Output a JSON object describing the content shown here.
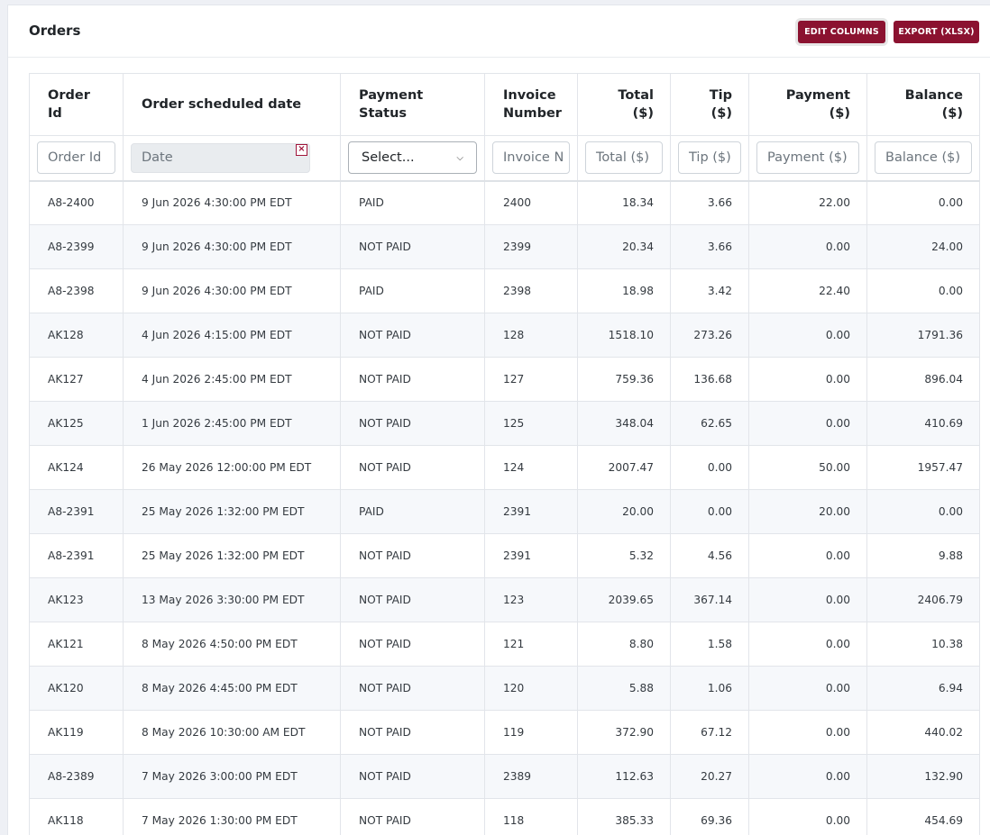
{
  "header": {
    "title": "Orders",
    "edit_columns_label": "EDIT COLUMNS",
    "export_label": "EXPORT (XLSX)"
  },
  "columns": [
    "Order Id",
    "Order scheduled date",
    "Payment Status",
    "Invoice Number",
    "Total ($)",
    "Tip ($)",
    "Payment ($)",
    "Balance ($)"
  ],
  "filters": {
    "order_id_placeholder": "Order Id",
    "date_placeholder": "Date",
    "date_clear_icon": "×",
    "payment_status_selected": "Select...",
    "invoice_placeholder": "Invoice N",
    "total_placeholder": "Total ($)",
    "tip_placeholder": "Tip ($)",
    "payment_placeholder": "Payment ($)",
    "balance_placeholder": "Balance ($)"
  },
  "rows": [
    [
      "A8-2400",
      "9 Jun 2026 4:30:00 PM EDT",
      "PAID",
      "2400",
      "18.34",
      "3.66",
      "22.00",
      "0.00"
    ],
    [
      "A8-2399",
      "9 Jun 2026 4:30:00 PM EDT",
      "NOT PAID",
      "2399",
      "20.34",
      "3.66",
      "0.00",
      "24.00"
    ],
    [
      "A8-2398",
      "9 Jun 2026 4:30:00 PM EDT",
      "PAID",
      "2398",
      "18.98",
      "3.42",
      "22.40",
      "0.00"
    ],
    [
      "AK128",
      "4 Jun 2026 4:15:00 PM EDT",
      "NOT PAID",
      "128",
      "1518.10",
      "273.26",
      "0.00",
      "1791.36"
    ],
    [
      "AK127",
      "4 Jun 2026 2:45:00 PM EDT",
      "NOT PAID",
      "127",
      "759.36",
      "136.68",
      "0.00",
      "896.04"
    ],
    [
      "AK125",
      "1 Jun 2026 2:45:00 PM EDT",
      "NOT PAID",
      "125",
      "348.04",
      "62.65",
      "0.00",
      "410.69"
    ],
    [
      "AK124",
      "26 May 2026 12:00:00 PM EDT",
      "NOT PAID",
      "124",
      "2007.47",
      "0.00",
      "50.00",
      "1957.47"
    ],
    [
      "A8-2391",
      "25 May 2026 1:32:00 PM EDT",
      "PAID",
      "2391",
      "20.00",
      "0.00",
      "20.00",
      "0.00"
    ],
    [
      "A8-2391",
      "25 May 2026 1:32:00 PM EDT",
      "NOT PAID",
      "2391",
      "5.32",
      "4.56",
      "0.00",
      "9.88"
    ],
    [
      "AK123",
      "13 May 2026 3:30:00 PM EDT",
      "NOT PAID",
      "123",
      "2039.65",
      "367.14",
      "0.00",
      "2406.79"
    ],
    [
      "AK121",
      "8 May 2026 4:50:00 PM EDT",
      "NOT PAID",
      "121",
      "8.80",
      "1.58",
      "0.00",
      "10.38"
    ],
    [
      "AK120",
      "8 May 2026 4:45:00 PM EDT",
      "NOT PAID",
      "120",
      "5.88",
      "1.06",
      "0.00",
      "6.94"
    ],
    [
      "AK119",
      "8 May 2026 10:30:00 AM EDT",
      "NOT PAID",
      "119",
      "372.90",
      "67.12",
      "0.00",
      "440.02"
    ],
    [
      "A8-2389",
      "7 May 2026 3:00:00 PM EDT",
      "NOT PAID",
      "2389",
      "112.63",
      "20.27",
      "0.00",
      "132.90"
    ],
    [
      "AK118",
      "7 May 2026 1:30:00 PM EDT",
      "NOT PAID",
      "118",
      "385.33",
      "69.36",
      "0.00",
      "454.69"
    ]
  ]
}
